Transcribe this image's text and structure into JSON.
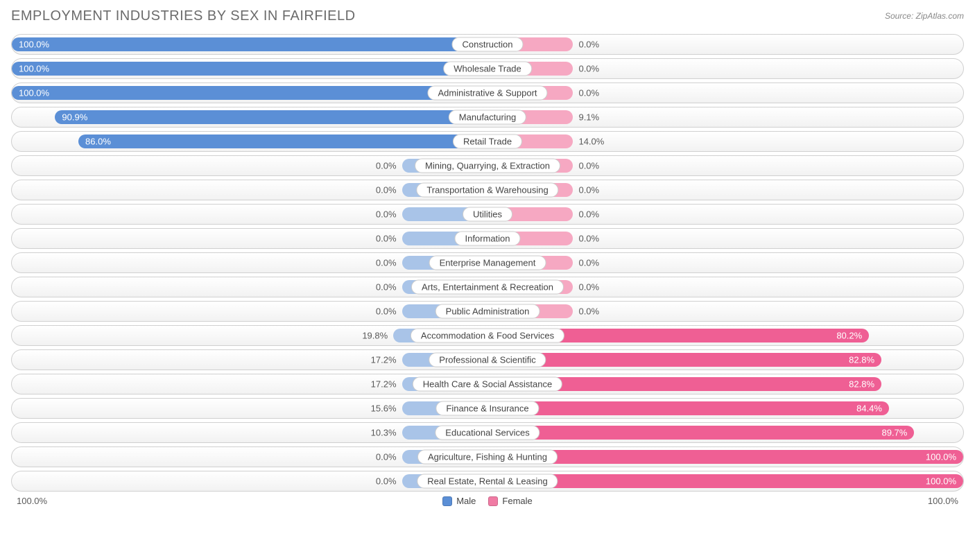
{
  "title": "EMPLOYMENT INDUSTRIES BY SEX IN FAIRFIELD",
  "source": "Source: ZipAtlas.com",
  "axis": {
    "left": "100.0%",
    "right": "100.0%"
  },
  "legend": {
    "male": {
      "label": "Male",
      "color": "#5b8fd6"
    },
    "female": {
      "label": "Female",
      "color": "#f07ba4"
    }
  },
  "style": {
    "male_strong": "#5b8fd6",
    "male_soft": "#a9c4e8",
    "female_strong": "#ef5f94",
    "female_soft": "#f6a8c2",
    "row_border": "#d0d0d0",
    "row_bg_top": "#ffffff",
    "row_bg_bottom": "#f2f2f2",
    "label_bg": "#ffffff",
    "label_border": "#cccccc",
    "text_color": "#5a5a5a",
    "inside_text": "#ffffff",
    "min_bar_pct": 18,
    "label_fontsize": 13
  },
  "rows": [
    {
      "category": "Construction",
      "male": 100.0,
      "female": 0.0
    },
    {
      "category": "Wholesale Trade",
      "male": 100.0,
      "female": 0.0
    },
    {
      "category": "Administrative & Support",
      "male": 100.0,
      "female": 0.0
    },
    {
      "category": "Manufacturing",
      "male": 90.9,
      "female": 9.1
    },
    {
      "category": "Retail Trade",
      "male": 86.0,
      "female": 14.0
    },
    {
      "category": "Mining, Quarrying, & Extraction",
      "male": 0.0,
      "female": 0.0
    },
    {
      "category": "Transportation & Warehousing",
      "male": 0.0,
      "female": 0.0
    },
    {
      "category": "Utilities",
      "male": 0.0,
      "female": 0.0
    },
    {
      "category": "Information",
      "male": 0.0,
      "female": 0.0
    },
    {
      "category": "Enterprise Management",
      "male": 0.0,
      "female": 0.0
    },
    {
      "category": "Arts, Entertainment & Recreation",
      "male": 0.0,
      "female": 0.0
    },
    {
      "category": "Public Administration",
      "male": 0.0,
      "female": 0.0
    },
    {
      "category": "Accommodation & Food Services",
      "male": 19.8,
      "female": 80.2
    },
    {
      "category": "Professional & Scientific",
      "male": 17.2,
      "female": 82.8
    },
    {
      "category": "Health Care & Social Assistance",
      "male": 17.2,
      "female": 82.8
    },
    {
      "category": "Finance & Insurance",
      "male": 15.6,
      "female": 84.4
    },
    {
      "category": "Educational Services",
      "male": 10.3,
      "female": 89.7
    },
    {
      "category": "Agriculture, Fishing & Hunting",
      "male": 0.0,
      "female": 100.0
    },
    {
      "category": "Real Estate, Rental & Leasing",
      "male": 0.0,
      "female": 100.0
    }
  ]
}
